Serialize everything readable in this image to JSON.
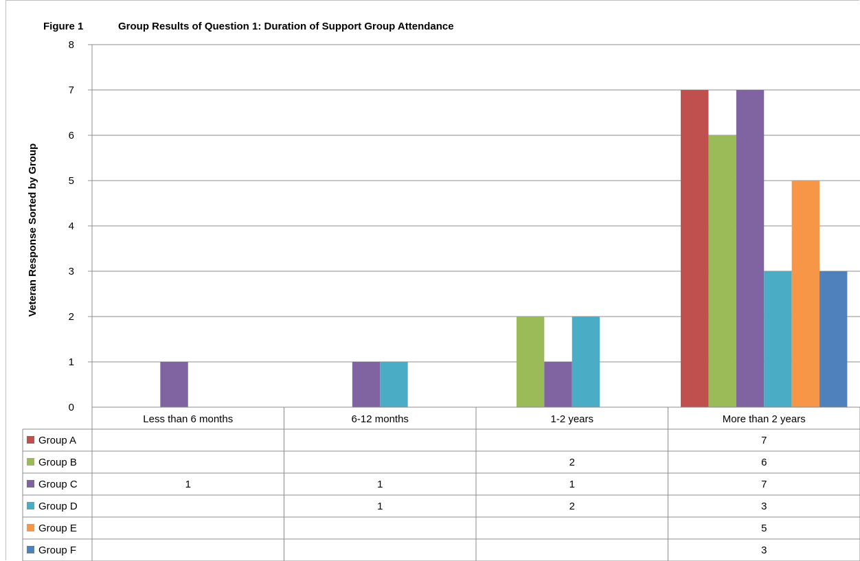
{
  "figure_label": "Figure 1",
  "chart_data": {
    "type": "bar",
    "title": "Group Results of Question 1: Duration of Support Group Attendance",
    "xlabel": "",
    "ylabel": "Veteran  Response Sorted by Group",
    "ylim": [
      0,
      8
    ],
    "yticks": [
      "0",
      "1",
      "2",
      "3",
      "4",
      "5",
      "6",
      "7",
      "8"
    ],
    "categories": [
      "Less than 6 months",
      "6-12 months",
      "1-2 years",
      "More than 2 years"
    ],
    "grid": true,
    "legend": "data-table",
    "series": [
      {
        "name": "Group A",
        "color": "#c0504d",
        "values": [
          null,
          null,
          null,
          7
        ]
      },
      {
        "name": "Group B",
        "color": "#9bbb59",
        "values": [
          null,
          null,
          2,
          6
        ]
      },
      {
        "name": "Group C",
        "color": "#8064a2",
        "values": [
          1,
          1,
          1,
          7
        ]
      },
      {
        "name": "Group D",
        "color": "#4bacc6",
        "values": [
          null,
          1,
          2,
          3
        ]
      },
      {
        "name": "Group E",
        "color": "#f79646",
        "values": [
          null,
          null,
          null,
          5
        ]
      },
      {
        "name": "Group F",
        "color": "#4f81bd",
        "values": [
          null,
          null,
          null,
          3
        ]
      }
    ]
  }
}
